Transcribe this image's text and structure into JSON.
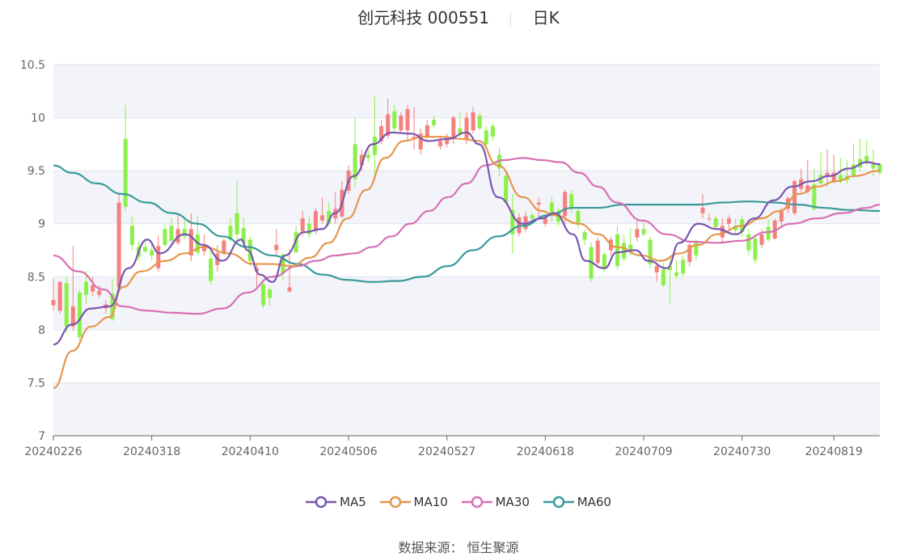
{
  "header": {
    "title": "创元科技 000551",
    "period": "日K"
  },
  "source_text": "数据来源：  恒生聚源",
  "colors": {
    "up": "#f4817f",
    "down": "#8bf04a",
    "ma5": "#7a55b0",
    "ma10": "#e5964b",
    "ma30": "#d86fb4",
    "ma60": "#3a9a9a",
    "band": "#f3f4f9",
    "grid": "#dfe3ef"
  },
  "chart_data": {
    "type": "candlestick",
    "ylim": [
      7,
      10.5
    ],
    "yticks": [
      "7",
      "7.5",
      "8",
      "8.5",
      "9",
      "9.5",
      "10",
      "10.5"
    ],
    "xticks": [
      {
        "label": "20240226",
        "index": 0
      },
      {
        "label": "20240318",
        "index": 15
      },
      {
        "label": "20240410",
        "index": 30
      },
      {
        "label": "20240506",
        "index": 45
      },
      {
        "label": "20240527",
        "index": 60
      },
      {
        "label": "20240618",
        "index": 75
      },
      {
        "label": "20240709",
        "index": 90
      },
      {
        "label": "20240730",
        "index": 105
      },
      {
        "label": "20240819",
        "index": 119
      }
    ],
    "candles": [
      [
        8.23,
        8.28,
        8.18,
        8.48
      ],
      [
        8.18,
        8.45,
        8.15,
        8.46
      ],
      [
        8.44,
        8.03,
        7.97,
        8.5
      ],
      [
        8.03,
        8.22,
        7.99,
        8.79
      ],
      [
        8.35,
        7.93,
        7.9,
        8.38
      ],
      [
        8.45,
        8.33,
        8.25,
        8.56
      ],
      [
        8.36,
        8.42,
        8.32,
        8.5
      ],
      [
        8.33,
        8.37,
        8.3,
        8.42
      ],
      [
        8.2,
        8.24,
        8.15,
        8.28
      ],
      [
        8.34,
        8.1,
        8.08,
        8.48
      ],
      [
        8.4,
        9.2,
        8.38,
        9.28
      ],
      [
        9.8,
        9.16,
        9.12,
        10.12
      ],
      [
        8.98,
        8.8,
        8.75,
        9.07
      ],
      [
        8.78,
        8.69,
        8.65,
        8.83
      ],
      [
        8.78,
        8.74,
        8.72,
        8.86
      ],
      [
        8.75,
        8.7,
        8.65,
        8.82
      ],
      [
        8.58,
        8.79,
        8.55,
        8.89
      ],
      [
        8.95,
        8.8,
        8.78,
        8.99
      ],
      [
        8.98,
        8.84,
        8.8,
        9.05
      ],
      [
        8.82,
        8.95,
        8.8,
        9.1
      ],
      [
        8.95,
        8.88,
        8.85,
        9.05
      ],
      [
        8.7,
        8.95,
        8.65,
        9.1
      ],
      [
        8.9,
        8.73,
        8.7,
        9.08
      ],
      [
        8.74,
        8.8,
        8.7,
        8.9
      ],
      [
        8.67,
        8.46,
        8.43,
        8.75
      ],
      [
        8.61,
        8.72,
        8.55,
        8.8
      ],
      [
        8.73,
        8.84,
        8.7,
        8.86
      ],
      [
        8.98,
        8.85,
        8.83,
        9.05
      ],
      [
        9.1,
        8.9,
        8.85,
        9.4
      ],
      [
        8.96,
        8.82,
        8.77,
        9.06
      ],
      [
        8.85,
        8.65,
        8.6,
        8.88
      ],
      [
        8.55,
        8.58,
        8.4,
        8.62
      ],
      [
        8.43,
        8.23,
        8.2,
        8.47
      ],
      [
        8.38,
        8.3,
        8.22,
        8.4
      ],
      [
        8.75,
        8.8,
        8.7,
        8.95
      ],
      [
        8.71,
        8.53,
        8.47,
        8.72
      ],
      [
        8.36,
        8.4,
        8.35,
        8.76
      ],
      [
        8.92,
        8.73,
        8.72,
        8.98
      ],
      [
        8.93,
        9.05,
        8.88,
        9.12
      ],
      [
        9.0,
        8.9,
        8.87,
        9.07
      ],
      [
        8.93,
        9.12,
        8.9,
        9.15
      ],
      [
        9.03,
        9.08,
        9.0,
        9.25
      ],
      [
        9.12,
        9.0,
        8.98,
        9.2
      ],
      [
        9.05,
        9.14,
        9.0,
        9.3
      ],
      [
        9.07,
        9.32,
        9.05,
        9.4
      ],
      [
        9.31,
        9.5,
        9.28,
        9.55
      ],
      [
        9.75,
        9.42,
        9.35,
        10.0
      ],
      [
        9.55,
        9.65,
        9.5,
        9.7
      ],
      [
        9.65,
        9.62,
        9.58,
        9.72
      ],
      [
        9.82,
        9.65,
        9.45,
        10.2
      ],
      [
        9.78,
        9.92,
        9.75,
        9.98
      ],
      [
        9.83,
        10.03,
        9.8,
        10.18
      ],
      [
        10.06,
        9.9,
        9.85,
        10.12
      ],
      [
        9.88,
        10.02,
        9.85,
        10.05
      ],
      [
        9.88,
        10.08,
        9.78,
        10.12
      ],
      [
        9.8,
        9.82,
        9.7,
        10.1
      ],
      [
        9.7,
        9.85,
        9.65,
        9.9
      ],
      [
        9.82,
        9.93,
        9.8,
        9.98
      ],
      [
        9.98,
        9.93,
        9.9,
        10.02
      ],
      [
        9.73,
        9.78,
        9.7,
        9.83
      ],
      [
        9.75,
        9.8,
        9.72,
        9.85
      ],
      [
        9.8,
        10.0,
        9.75,
        10.02
      ],
      [
        9.9,
        9.85,
        9.82,
        10.06
      ],
      [
        9.8,
        10.0,
        9.75,
        10.05
      ],
      [
        9.88,
        10.05,
        9.85,
        10.1
      ],
      [
        10.02,
        9.9,
        9.88,
        10.04
      ],
      [
        9.88,
        9.75,
        9.72,
        9.92
      ],
      [
        9.92,
        9.82,
        9.78,
        9.95
      ],
      [
        9.65,
        9.52,
        9.45,
        9.72
      ],
      [
        9.45,
        9.2,
        9.18,
        9.5
      ],
      [
        9.13,
        8.9,
        8.72,
        9.28
      ],
      [
        8.91,
        9.06,
        8.88,
        9.1
      ],
      [
        8.95,
        9.07,
        8.92,
        9.12
      ],
      [
        9.08,
        9.05,
        9.0,
        9.1
      ],
      [
        9.18,
        9.2,
        9.05,
        9.25
      ],
      [
        9.0,
        9.05,
        8.97,
        9.08
      ],
      [
        9.2,
        9.08,
        9.02,
        9.25
      ],
      [
        9.12,
        9.02,
        8.98,
        9.15
      ],
      [
        9.07,
        9.3,
        9.0,
        9.32
      ],
      [
        9.28,
        9.14,
        9.1,
        9.32
      ],
      [
        9.12,
        8.99,
        8.95,
        9.15
      ],
      [
        8.92,
        8.85,
        8.8,
        8.95
      ],
      [
        8.78,
        8.48,
        8.45,
        8.82
      ],
      [
        8.63,
        8.84,
        8.6,
        8.87
      ],
      [
        8.71,
        8.58,
        8.55,
        8.73
      ],
      [
        8.75,
        8.85,
        8.7,
        8.88
      ],
      [
        8.9,
        8.6,
        8.57,
        8.98
      ],
      [
        8.82,
        8.67,
        8.64,
        8.9
      ],
      [
        8.8,
        8.74,
        8.7,
        8.96
      ],
      [
        8.87,
        8.95,
        8.83,
        9.03
      ],
      [
        8.95,
        8.9,
        8.88,
        9.02
      ],
      [
        8.85,
        8.62,
        8.58,
        8.88
      ],
      [
        8.54,
        8.6,
        8.45,
        8.62
      ],
      [
        8.57,
        8.42,
        8.4,
        8.63
      ],
      [
        8.6,
        8.56,
        8.25,
        8.68
      ],
      [
        8.54,
        8.51,
        8.48,
        8.65
      ],
      [
        8.66,
        8.53,
        8.5,
        8.7
      ],
      [
        8.64,
        8.8,
        8.6,
        8.83
      ],
      [
        8.82,
        8.7,
        8.65,
        8.85
      ],
      [
        9.1,
        9.15,
        9.05,
        9.28
      ],
      [
        9.05,
        9.05,
        9.02,
        9.1
      ],
      [
        9.05,
        8.97,
        8.95,
        9.08
      ],
      [
        8.87,
        8.98,
        8.82,
        9.05
      ],
      [
        9.0,
        9.05,
        8.95,
        9.08
      ],
      [
        8.98,
        8.94,
        8.9,
        9.05
      ],
      [
        9.04,
        8.92,
        8.88,
        9.08
      ],
      [
        8.9,
        8.75,
        8.7,
        8.95
      ],
      [
        8.86,
        8.66,
        8.62,
        8.9
      ],
      [
        8.8,
        8.9,
        8.77,
        8.95
      ],
      [
        8.97,
        8.85,
        8.83,
        9.04
      ],
      [
        8.86,
        9.03,
        8.85,
        9.05
      ],
      [
        9.02,
        9.12,
        8.97,
        9.15
      ],
      [
        9.14,
        9.24,
        9.1,
        9.26
      ],
      [
        9.1,
        9.4,
        9.08,
        9.42
      ],
      [
        9.33,
        9.42,
        9.3,
        9.52
      ],
      [
        9.3,
        9.36,
        9.28,
        9.6
      ],
      [
        9.37,
        9.14,
        9.12,
        9.52
      ],
      [
        9.46,
        9.38,
        9.35,
        9.67
      ],
      [
        9.45,
        9.48,
        9.35,
        9.7
      ],
      [
        9.4,
        9.48,
        9.38,
        9.65
      ],
      [
        9.46,
        9.4,
        9.38,
        9.62
      ],
      [
        9.45,
        9.41,
        9.38,
        9.6
      ],
      [
        9.56,
        9.46,
        9.43,
        9.76
      ],
      [
        9.61,
        9.53,
        9.5,
        9.8
      ],
      [
        9.64,
        9.57,
        9.55,
        9.79
      ],
      [
        9.56,
        9.52,
        9.45,
        9.7
      ],
      [
        9.56,
        9.48,
        9.46,
        9.58
      ]
    ]
  },
  "legend": [
    {
      "key": "ma5",
      "label": "MA5"
    },
    {
      "key": "ma10",
      "label": "MA10"
    },
    {
      "key": "ma30",
      "label": "MA30"
    },
    {
      "key": "ma60",
      "label": "MA60"
    }
  ],
  "ma_series": {
    "ma5": [
      [
        0,
        7.86
      ],
      [
        3,
        8.05
      ],
      [
        6,
        8.2
      ],
      [
        9,
        8.22
      ],
      [
        12,
        8.58
      ],
      [
        15,
        8.85
      ],
      [
        17,
        8.72
      ],
      [
        21,
        8.9
      ],
      [
        24,
        8.8
      ],
      [
        27,
        8.65
      ],
      [
        30,
        8.85
      ],
      [
        31,
        8.75
      ],
      [
        33,
        8.52
      ],
      [
        35,
        8.45
      ],
      [
        37,
        8.7
      ],
      [
        40,
        8.92
      ],
      [
        43,
        8.95
      ],
      [
        45,
        9.1
      ],
      [
        48,
        9.45
      ],
      [
        51,
        9.75
      ],
      [
        54,
        9.86
      ],
      [
        57,
        9.85
      ],
      [
        60,
        9.78
      ],
      [
        63,
        9.8
      ],
      [
        66,
        9.86
      ],
      [
        68,
        9.75
      ],
      [
        71,
        9.25
      ],
      [
        75,
        9.0
      ],
      [
        78,
        9.05
      ],
      [
        80,
        9.1
      ],
      [
        83,
        8.9
      ],
      [
        85,
        8.65
      ],
      [
        88,
        8.58
      ],
      [
        90,
        8.73
      ],
      [
        93,
        8.75
      ],
      [
        95,
        8.65
      ],
      [
        98,
        8.58
      ],
      [
        100,
        8.82
      ],
      [
        103,
        9.0
      ],
      [
        106,
        8.95
      ],
      [
        109,
        8.9
      ],
      [
        112,
        9.05
      ],
      [
        115,
        9.22
      ],
      [
        118,
        9.35
      ],
      [
        121,
        9.4
      ],
      [
        124,
        9.45
      ],
      [
        127,
        9.52
      ],
      [
        130,
        9.58
      ],
      [
        132,
        9.56
      ]
    ],
    "ma10": [
      [
        0,
        7.45
      ],
      [
        3,
        7.8
      ],
      [
        6,
        8.03
      ],
      [
        9,
        8.12
      ],
      [
        11,
        8.4
      ],
      [
        14,
        8.55
      ],
      [
        18,
        8.65
      ],
      [
        21,
        8.72
      ],
      [
        24,
        8.78
      ],
      [
        28,
        8.72
      ],
      [
        32,
        8.62
      ],
      [
        35,
        8.62
      ],
      [
        38,
        8.6
      ],
      [
        41,
        8.68
      ],
      [
        44,
        8.82
      ],
      [
        47,
        9.05
      ],
      [
        50,
        9.32
      ],
      [
        53,
        9.62
      ],
      [
        56,
        9.78
      ],
      [
        59,
        9.82
      ],
      [
        62,
        9.82
      ],
      [
        65,
        9.8
      ],
      [
        68,
        9.78
      ],
      [
        71,
        9.55
      ],
      [
        75,
        9.25
      ],
      [
        78,
        9.12
      ],
      [
        80,
        9.08
      ],
      [
        84,
        9.0
      ],
      [
        87,
        8.9
      ],
      [
        90,
        8.78
      ],
      [
        94,
        8.7
      ],
      [
        97,
        8.65
      ],
      [
        100,
        8.72
      ],
      [
        103,
        8.8
      ],
      [
        106,
        8.9
      ],
      [
        110,
        8.98
      ],
      [
        113,
        9.05
      ],
      [
        116,
        9.12
      ],
      [
        119,
        9.28
      ],
      [
        122,
        9.35
      ],
      [
        125,
        9.4
      ],
      [
        128,
        9.45
      ],
      [
        132,
        9.5
      ]
    ],
    "ma30": [
      [
        0,
        8.7
      ],
      [
        4,
        8.55
      ],
      [
        8,
        8.38
      ],
      [
        11,
        8.22
      ],
      [
        15,
        8.18
      ],
      [
        19,
        8.16
      ],
      [
        23,
        8.15
      ],
      [
        27,
        8.2
      ],
      [
        31,
        8.35
      ],
      [
        35,
        8.5
      ],
      [
        39,
        8.6
      ],
      [
        42,
        8.65
      ],
      [
        45,
        8.7
      ],
      [
        48,
        8.72
      ],
      [
        51,
        8.78
      ],
      [
        54,
        8.88
      ],
      [
        57,
        9.0
      ],
      [
        60,
        9.12
      ],
      [
        63,
        9.25
      ],
      [
        66,
        9.38
      ],
      [
        69,
        9.55
      ],
      [
        72,
        9.6
      ],
      [
        75,
        9.62
      ],
      [
        78,
        9.6
      ],
      [
        81,
        9.58
      ],
      [
        84,
        9.48
      ],
      [
        87,
        9.35
      ],
      [
        90,
        9.2
      ],
      [
        94,
        9.03
      ],
      [
        98,
        8.9
      ],
      [
        102,
        8.83
      ],
      [
        106,
        8.82
      ],
      [
        110,
        8.84
      ],
      [
        114,
        8.92
      ],
      [
        118,
        9.0
      ],
      [
        122,
        9.05
      ],
      [
        126,
        9.1
      ],
      [
        130,
        9.15
      ],
      [
        132,
        9.18
      ]
    ],
    "ma60": [
      [
        0,
        9.55
      ],
      [
        3,
        9.48
      ],
      [
        7,
        9.38
      ],
      [
        11,
        9.28
      ],
      [
        15,
        9.2
      ],
      [
        19,
        9.1
      ],
      [
        23,
        9.0
      ],
      [
        27,
        8.88
      ],
      [
        31,
        8.78
      ],
      [
        35,
        8.7
      ],
      [
        39,
        8.62
      ],
      [
        43,
        8.52
      ],
      [
        47,
        8.47
      ],
      [
        51,
        8.45
      ],
      [
        55,
        8.46
      ],
      [
        59,
        8.5
      ],
      [
        63,
        8.6
      ],
      [
        67,
        8.75
      ],
      [
        71,
        8.88
      ],
      [
        75,
        8.98
      ],
      [
        79,
        9.08
      ],
      [
        83,
        9.15
      ],
      [
        87,
        9.15
      ],
      [
        91,
        9.18
      ],
      [
        95,
        9.18
      ],
      [
        99,
        9.18
      ],
      [
        103,
        9.18
      ],
      [
        107,
        9.2
      ],
      [
        111,
        9.21
      ],
      [
        115,
        9.2
      ],
      [
        119,
        9.18
      ],
      [
        123,
        9.15
      ],
      [
        127,
        9.13
      ],
      [
        132,
        9.12
      ]
    ]
  }
}
